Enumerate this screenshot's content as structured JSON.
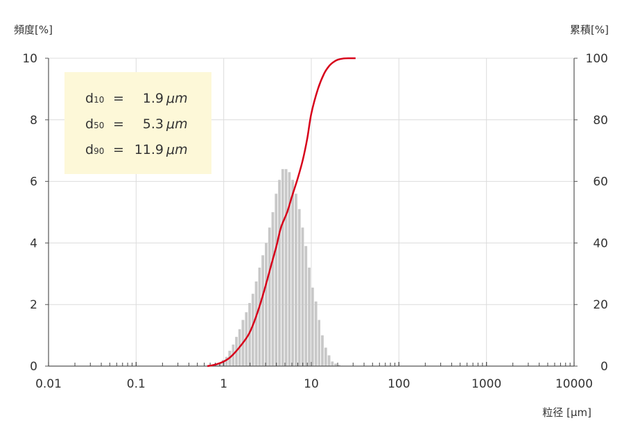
{
  "chart_data": {
    "type": "bar",
    "x_scale": "log",
    "xlim": [
      0.01,
      10000
    ],
    "ylim_left": [
      0,
      10
    ],
    "ylim_right": [
      0,
      100
    ],
    "xlabel": "粒径 [µm]",
    "ylabel_left": "頻度[%]",
    "ylabel_right": "累積[%]",
    "x_ticks": [
      "0.01",
      "0.1",
      "1",
      "10",
      "100",
      "1000",
      "10000"
    ],
    "y_ticks_left": [
      "0",
      "2",
      "4",
      "6",
      "8",
      "10"
    ],
    "y_ticks_right": [
      "0",
      "20",
      "40",
      "60",
      "80",
      "100"
    ],
    "grid": true,
    "colors": {
      "bars": "#c8c8c8",
      "cumulative": "#d7001a",
      "stats_box": "#fdf8d8",
      "grid": "#dcdcdc"
    },
    "stats": [
      {
        "label": "d",
        "sub": "10",
        "value": "1.9",
        "unit": "μm"
      },
      {
        "label": "d",
        "sub": "50",
        "value": "5.3",
        "unit": "μm"
      },
      {
        "label": "d",
        "sub": "90",
        "value": "11.9",
        "unit": "μm"
      }
    ],
    "series": [
      {
        "type": "bar",
        "axis": "left",
        "bin_edges": [
          0.8,
          0.87,
          0.95,
          1.04,
          1.13,
          1.24,
          1.35,
          1.47,
          1.6,
          1.75,
          1.91,
          2.08,
          2.27,
          2.48,
          2.7,
          2.95,
          3.22,
          3.51,
          3.83,
          4.18,
          4.56,
          4.97,
          5.43,
          5.92,
          6.46,
          7.05,
          7.69,
          8.39,
          9.15,
          9.98,
          10.9,
          11.9,
          12.9,
          14.1,
          15.4,
          16.8,
          18.3,
          20.0,
          21.8,
          23.8
        ],
        "values": [
          0.05,
          0.1,
          0.2,
          0.3,
          0.5,
          0.7,
          0.95,
          1.2,
          1.5,
          1.75,
          2.05,
          2.35,
          2.75,
          3.2,
          3.6,
          4.0,
          4.5,
          5.0,
          5.6,
          6.05,
          6.4,
          6.4,
          6.3,
          6.05,
          5.6,
          5.1,
          4.5,
          3.9,
          3.2,
          2.55,
          2.1,
          1.5,
          1.0,
          0.6,
          0.35,
          0.15,
          0.08,
          0.04,
          0.01
        ]
      },
      {
        "type": "line",
        "axis": "right",
        "x": [
          0.65,
          0.8,
          1.0,
          1.2,
          1.5,
          1.9,
          2.2,
          2.6,
          3.0,
          3.5,
          4.0,
          4.5,
          5.3,
          6.0,
          7.0,
          8.0,
          9.0,
          10.0,
          11.9,
          14.0,
          16.0,
          18.0,
          20.0,
          23.0,
          27.0,
          32.0
        ],
        "y": [
          0,
          0.5,
          1.5,
          3,
          6,
          10,
          14,
          20,
          26,
          33,
          39,
          45,
          50,
          55,
          61,
          67,
          74,
          82,
          90,
          95,
          97.5,
          98.8,
          99.5,
          99.9,
          100,
          100
        ]
      }
    ]
  }
}
